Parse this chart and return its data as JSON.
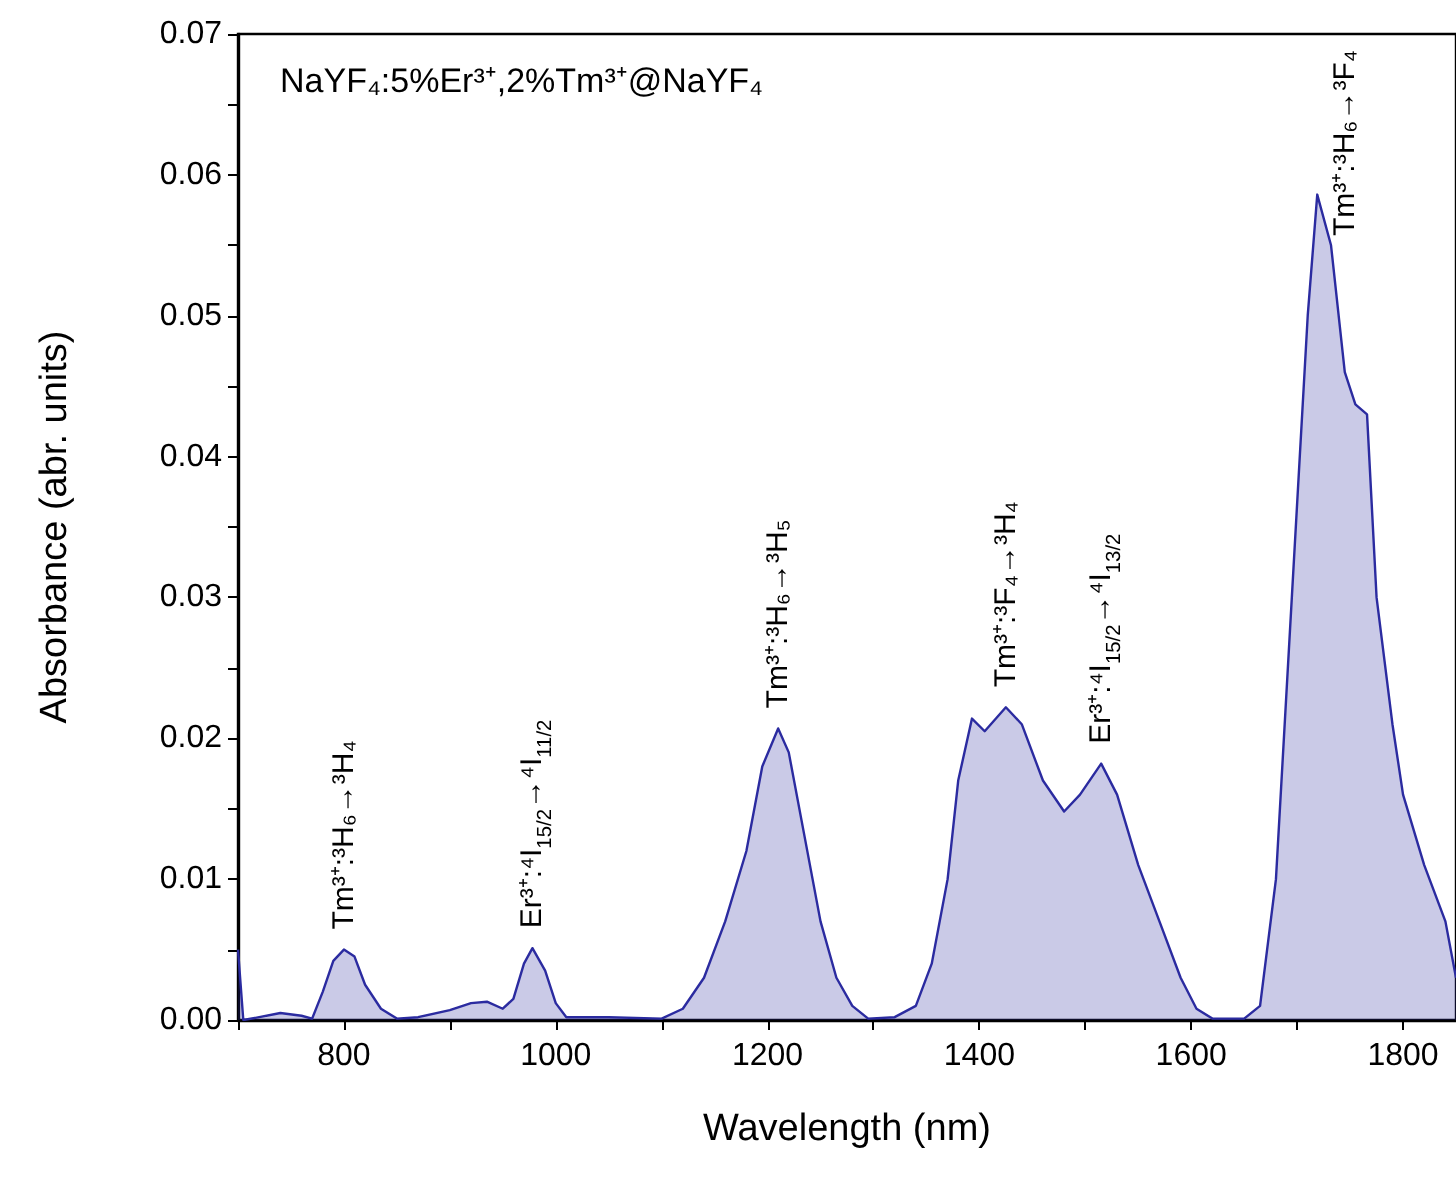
{
  "chart_data": {
    "type": "area",
    "title": "NaYF₄:5%Er³⁺,2%Tm³⁺@NaYF₄",
    "xlabel": "Wavelength (nm)",
    "ylabel": "Absorbance (abr. units)",
    "xlim": [
      700,
      1850
    ],
    "xticks": [
      {
        "value": 700,
        "label": null
      },
      800,
      {
        "value": 900,
        "label": null
      },
      1000,
      {
        "value": 1100,
        "label": null
      },
      1200,
      {
        "value": 1300,
        "label": null
      },
      1400,
      {
        "value": 1500,
        "label": null
      },
      1600,
      {
        "value": 1700,
        "label": null
      },
      1800
    ],
    "ylim": [
      0,
      0.07
    ],
    "yticks": [
      {
        "value": 0,
        "label": "0.00"
      },
      {
        "value": 0.005,
        "label": null
      },
      {
        "value": 0.01,
        "label": "0.01"
      },
      {
        "value": 0.015,
        "label": null
      },
      {
        "value": 0.02,
        "label": "0.02"
      },
      {
        "value": 0.025,
        "label": null
      },
      {
        "value": 0.03,
        "label": "0.03"
      },
      {
        "value": 0.035,
        "label": null
      },
      {
        "value": 0.04,
        "label": "0.04"
      },
      {
        "value": 0.045,
        "label": null
      },
      {
        "value": 0.05,
        "label": "0.05"
      },
      {
        "value": 0.055,
        "label": null
      },
      {
        "value": 0.06,
        "label": "0.06"
      },
      {
        "value": 0.065,
        "label": null
      },
      {
        "value": 0.07,
        "label": "0.07"
      }
    ],
    "grid": false,
    "marker": "none",
    "line_style": "solid",
    "series": [
      {
        "color": "#2b2ba0",
        "x": [
          700,
          705,
          720,
          740,
          760,
          770,
          780,
          790,
          800,
          810,
          820,
          835,
          850,
          870,
          900,
          920,
          935,
          950,
          960,
          970,
          978,
          990,
          1000,
          1010,
          1050,
          1100,
          1120,
          1140,
          1160,
          1180,
          1195,
          1210,
          1220,
          1235,
          1250,
          1265,
          1280,
          1295,
          1320,
          1340,
          1355,
          1370,
          1380,
          1393,
          1405,
          1425,
          1440,
          1460,
          1480,
          1495,
          1515,
          1530,
          1550,
          1570,
          1590,
          1605,
          1620,
          1650,
          1665,
          1680,
          1695,
          1710,
          1719,
          1732,
          1745,
          1755,
          1766,
          1775,
          1790,
          1800,
          1820,
          1840,
          1850
        ],
        "values": [
          0.005,
          0.0,
          0.0002,
          0.0005,
          0.0003,
          0.0001,
          0.002,
          0.0042,
          0.005,
          0.0045,
          0.0025,
          0.0008,
          0.0001,
          0.0002,
          0.0007,
          0.0012,
          0.0013,
          0.0008,
          0.0015,
          0.004,
          0.0051,
          0.0035,
          0.0012,
          0.0002,
          0.0002,
          0.0001,
          0.0008,
          0.003,
          0.007,
          0.012,
          0.018,
          0.0207,
          0.019,
          0.013,
          0.007,
          0.003,
          0.001,
          0.0001,
          0.0002,
          0.001,
          0.004,
          0.01,
          0.017,
          0.0214,
          0.0205,
          0.0222,
          0.021,
          0.017,
          0.0148,
          0.016,
          0.0182,
          0.016,
          0.011,
          0.007,
          0.003,
          0.0008,
          0.0001,
          0.0001,
          0.001,
          0.01,
          0.03,
          0.05,
          0.0586,
          0.055,
          0.046,
          0.0437,
          0.043,
          0.03,
          0.021,
          0.016,
          0.011,
          0.007,
          0.003
        ]
      }
    ],
    "annotations": [
      {
        "text": "Tm³⁺:³H₆→³H₄",
        "x": 800,
        "y": 0.005
      },
      {
        "text": "Er³⁺:⁴I$_{15/2}$→⁴I$_{11/2}$",
        "x": 978,
        "y": 0.0051
      },
      {
        "text": "Tm³⁺:³H₆→³H₅",
        "x": 1210,
        "y": 0.0207
      },
      {
        "text": "Tm³⁺:³F₄→³H₄",
        "x": 1425,
        "y": 0.0222
      },
      {
        "text": "Er³⁺:⁴I$_{15/2}$→⁴I$_{13/2}$",
        "x": 1515,
        "y": 0.0182
      },
      {
        "text": "Tm³⁺:³H₆→³F₄",
        "x": 1719,
        "y": 0.0586
      }
    ]
  }
}
